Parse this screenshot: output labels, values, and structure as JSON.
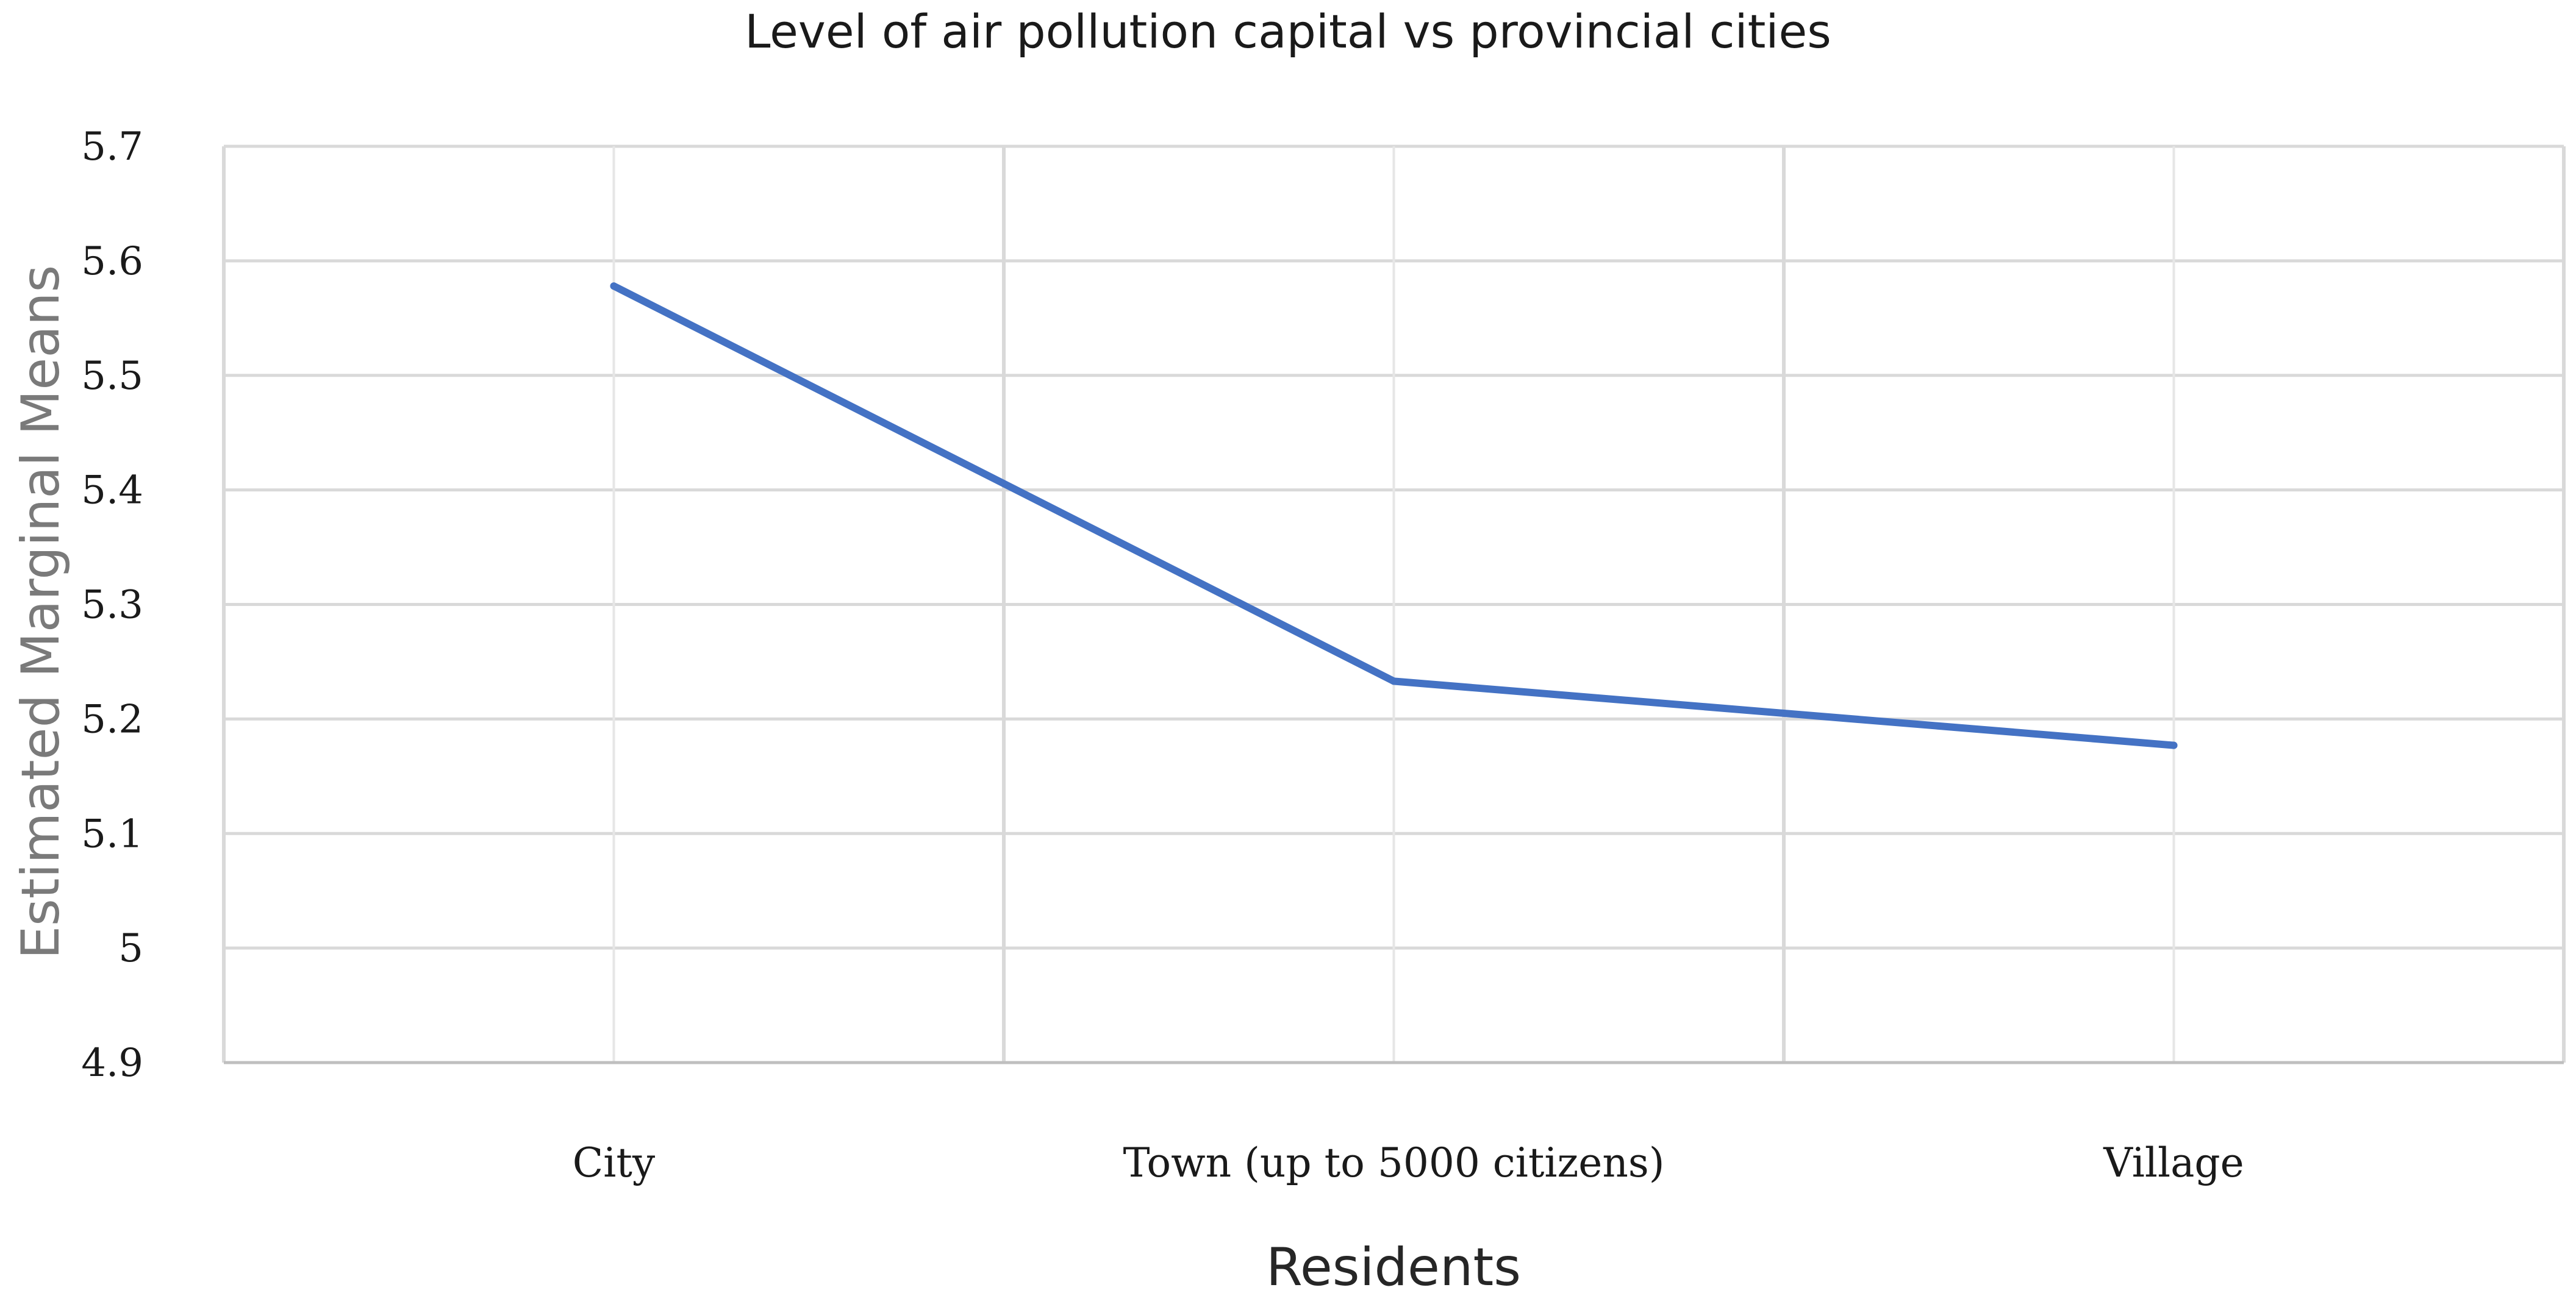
{
  "chart_data": {
    "type": "line",
    "title": "Level of air pollution capital vs provincial cities",
    "xlabel": "Residents",
    "ylabel": "Estimated Marginal Means",
    "categories": [
      "City",
      "Town (up to 5000 citizens)",
      "Village"
    ],
    "series": [
      {
        "values": [
          5.578,
          5.233,
          5.177
        ],
        "color": "#4472c4"
      }
    ],
    "ylim": [
      4.9,
      5.7
    ],
    "yticks": [
      "5.7",
      "5.6",
      "5.5",
      "5.4",
      "5.3",
      "5.2",
      "5.1",
      "5",
      "4.9"
    ],
    "grid": true,
    "legend": "none"
  }
}
